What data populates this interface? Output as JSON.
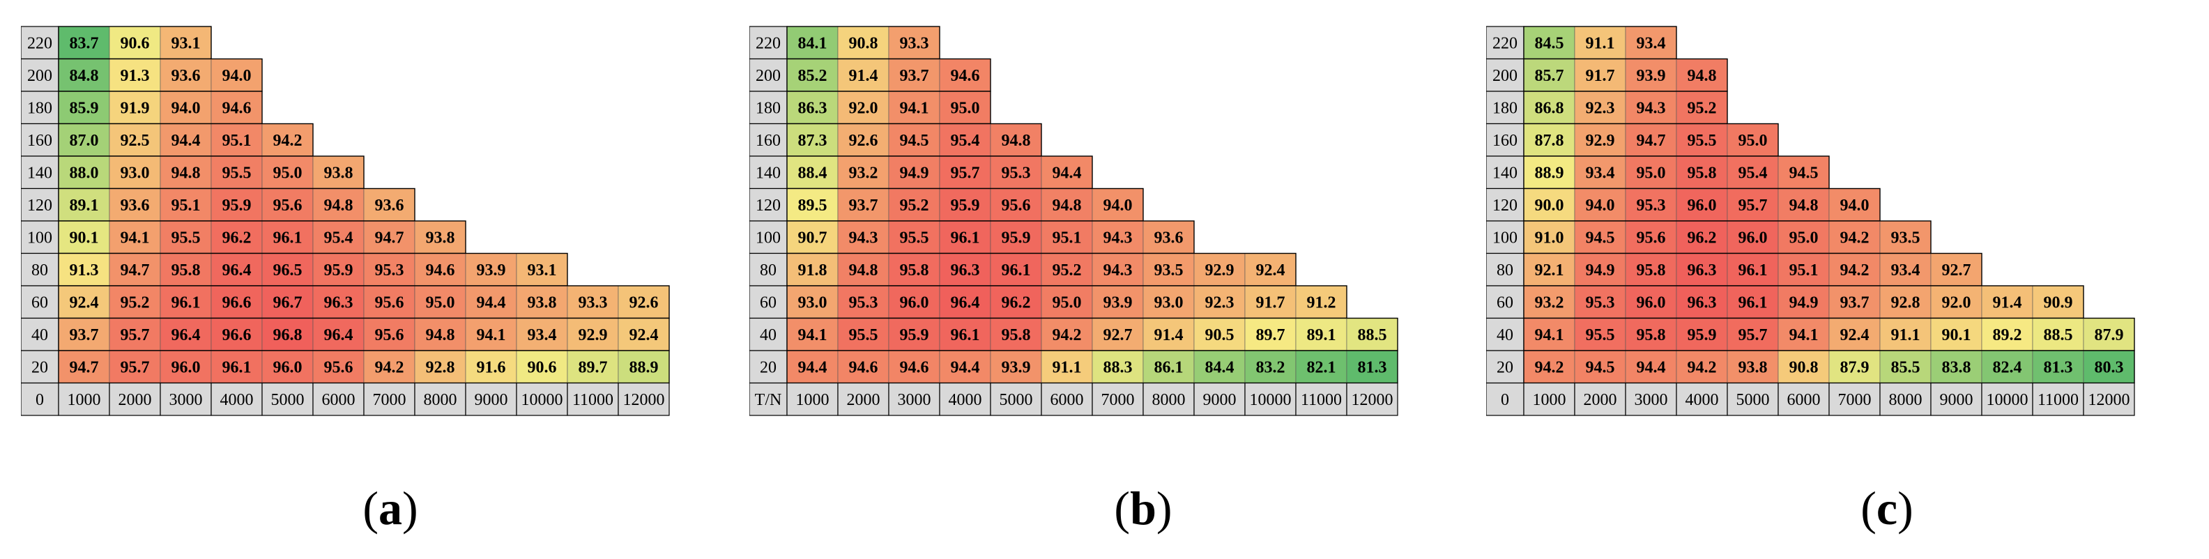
{
  "colors": {
    "axis_cell": "#d9d9d9",
    "low": "#5fbb6c",
    "mid": "#f6eb84",
    "high": "#f0605b",
    "grid_line": "#000000"
  },
  "chart_data": [
    {
      "type": "heatmap",
      "panel_label": "a",
      "corner_label": "0",
      "x_ticks": [
        "1000",
        "2000",
        "3000",
        "4000",
        "5000",
        "6000",
        "7000",
        "8000",
        "9000",
        "10000",
        "11000",
        "12000"
      ],
      "y_ticks": [
        "220",
        "200",
        "180",
        "160",
        "140",
        "120",
        "100",
        "80",
        "60",
        "40",
        "20"
      ],
      "rows": [
        [
          "83.7",
          "90.6",
          "93.1"
        ],
        [
          "84.8",
          "91.3",
          "93.6",
          "94.0"
        ],
        [
          "85.9",
          "91.9",
          "94.0",
          "94.6"
        ],
        [
          "87.0",
          "92.5",
          "94.4",
          "95.1",
          "94.2"
        ],
        [
          "88.0",
          "93.0",
          "94.8",
          "95.5",
          "95.0",
          "93.8"
        ],
        [
          "89.1",
          "93.6",
          "95.1",
          "95.9",
          "95.6",
          "94.8",
          "93.6"
        ],
        [
          "90.1",
          "94.1",
          "95.5",
          "96.2",
          "96.1",
          "95.4",
          "94.7",
          "93.8"
        ],
        [
          "91.3",
          "94.7",
          "95.8",
          "96.4",
          "96.5",
          "95.9",
          "95.3",
          "94.6",
          "93.9",
          "93.1"
        ],
        [
          "92.4",
          "95.2",
          "96.1",
          "96.6",
          "96.7",
          "96.3",
          "95.6",
          "95.0",
          "94.4",
          "93.8",
          "93.3",
          "92.6"
        ],
        [
          "93.7",
          "95.7",
          "96.4",
          "96.6",
          "96.8",
          "96.4",
          "95.6",
          "94.8",
          "94.1",
          "93.4",
          "92.9",
          "92.4"
        ],
        [
          "94.7",
          "95.7",
          "96.0",
          "96.1",
          "96.0",
          "95.6",
          "94.2",
          "92.8",
          "91.6",
          "90.6",
          "89.7",
          "88.9"
        ]
      ]
    },
    {
      "type": "heatmap",
      "panel_label": "b",
      "corner_label": "T/N",
      "x_ticks": [
        "1000",
        "2000",
        "3000",
        "4000",
        "5000",
        "6000",
        "7000",
        "8000",
        "9000",
        "10000",
        "11000",
        "12000"
      ],
      "y_ticks": [
        "220",
        "200",
        "180",
        "160",
        "140",
        "120",
        "100",
        "80",
        "60",
        "40",
        "20"
      ],
      "rows": [
        [
          "84.1",
          "90.8",
          "93.3"
        ],
        [
          "85.2",
          "91.4",
          "93.7",
          "94.6"
        ],
        [
          "86.3",
          "92.0",
          "94.1",
          "95.0"
        ],
        [
          "87.3",
          "92.6",
          "94.5",
          "95.4",
          "94.8"
        ],
        [
          "88.4",
          "93.2",
          "94.9",
          "95.7",
          "95.3",
          "94.4"
        ],
        [
          "89.5",
          "93.7",
          "95.2",
          "95.9",
          "95.6",
          "94.8",
          "94.0"
        ],
        [
          "90.7",
          "94.3",
          "95.5",
          "96.1",
          "95.9",
          "95.1",
          "94.3",
          "93.6"
        ],
        [
          "91.8",
          "94.8",
          "95.8",
          "96.3",
          "96.1",
          "95.2",
          "94.3",
          "93.5",
          "92.9",
          "92.4"
        ],
        [
          "93.0",
          "95.3",
          "96.0",
          "96.4",
          "96.2",
          "95.0",
          "93.9",
          "93.0",
          "92.3",
          "91.7",
          "91.2"
        ],
        [
          "94.1",
          "95.5",
          "95.9",
          "96.1",
          "95.8",
          "94.2",
          "92.7",
          "91.4",
          "90.5",
          "89.7",
          "89.1",
          "88.5"
        ],
        [
          "94.4",
          "94.6",
          "94.6",
          "94.4",
          "93.9",
          "91.1",
          "88.3",
          "86.1",
          "84.4",
          "83.2",
          "82.1",
          "81.3"
        ]
      ]
    },
    {
      "type": "heatmap",
      "panel_label": "c",
      "corner_label": "0",
      "x_ticks": [
        "1000",
        "2000",
        "3000",
        "4000",
        "5000",
        "6000",
        "7000",
        "8000",
        "9000",
        "10000",
        "11000",
        "12000"
      ],
      "y_ticks": [
        "220",
        "200",
        "180",
        "160",
        "140",
        "120",
        "100",
        "80",
        "60",
        "40",
        "20"
      ],
      "rows": [
        [
          "84.5",
          "91.1",
          "93.4"
        ],
        [
          "85.7",
          "91.7",
          "93.9",
          "94.8"
        ],
        [
          "86.8",
          "92.3",
          "94.3",
          "95.2"
        ],
        [
          "87.8",
          "92.9",
          "94.7",
          "95.5",
          "95.0"
        ],
        [
          "88.9",
          "93.4",
          "95.0",
          "95.8",
          "95.4",
          "94.5"
        ],
        [
          "90.0",
          "94.0",
          "95.3",
          "96.0",
          "95.7",
          "94.8",
          "94.0"
        ],
        [
          "91.0",
          "94.5",
          "95.6",
          "96.2",
          "96.0",
          "95.0",
          "94.2",
          "93.5"
        ],
        [
          "92.1",
          "94.9",
          "95.8",
          "96.3",
          "96.1",
          "95.1",
          "94.2",
          "93.4",
          "92.7"
        ],
        [
          "93.2",
          "95.3",
          "96.0",
          "96.3",
          "96.1",
          "94.9",
          "93.7",
          "92.8",
          "92.0",
          "91.4",
          "90.9"
        ],
        [
          "94.1",
          "95.5",
          "95.8",
          "95.9",
          "95.7",
          "94.1",
          "92.4",
          "91.1",
          "90.1",
          "89.2",
          "88.5",
          "87.9"
        ],
        [
          "94.2",
          "94.5",
          "94.4",
          "94.2",
          "93.8",
          "90.8",
          "87.9",
          "85.5",
          "83.8",
          "82.4",
          "81.3",
          "80.3"
        ]
      ]
    }
  ]
}
